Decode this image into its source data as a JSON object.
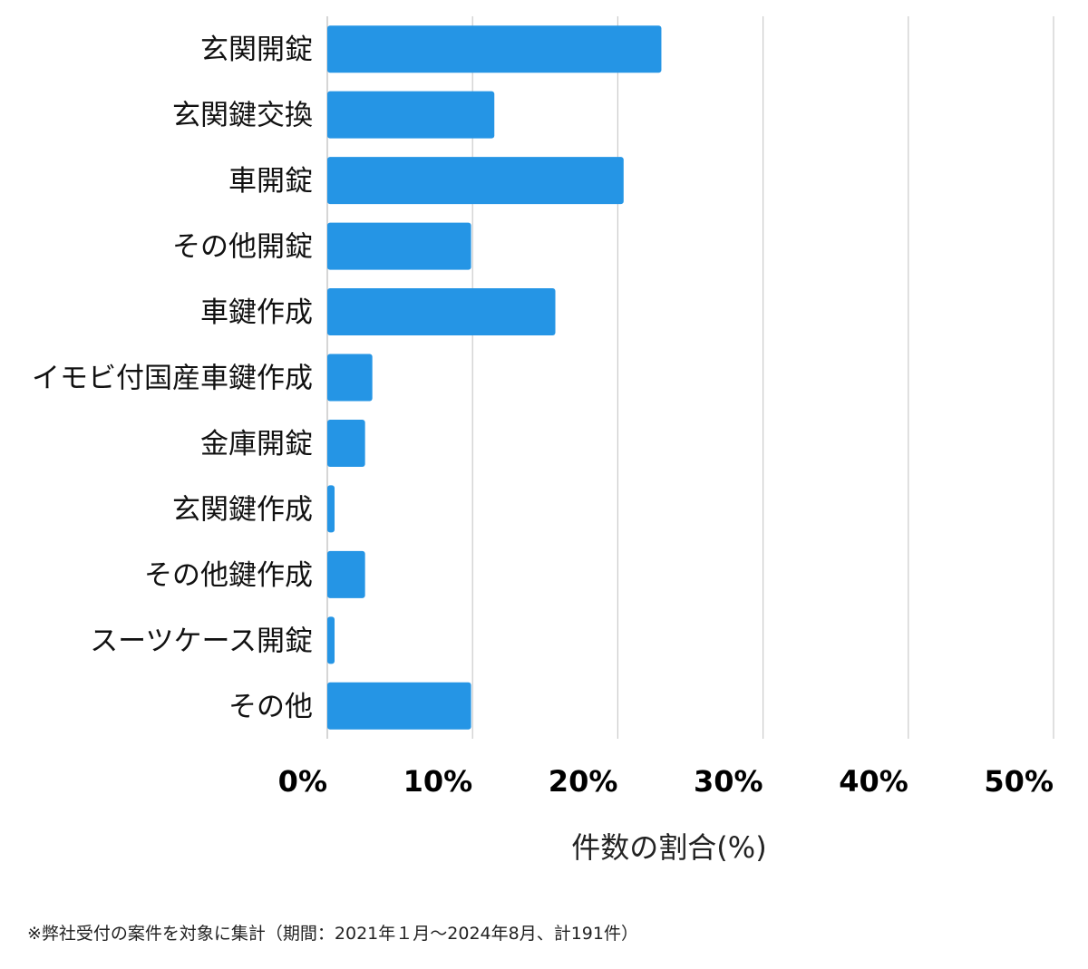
{
  "colors": {
    "bar": "#2595e5",
    "grid": "#cccccc",
    "axis": "#bbbbbb"
  },
  "chart_data": {
    "type": "bar",
    "orientation": "horizontal",
    "categories": [
      "玄関開錠",
      "玄関鍵交換",
      "車開錠",
      "その他開錠",
      "車鍵作成",
      "イモビ付国産車鍵作成",
      "金庫開錠",
      "玄関鍵作成",
      "その他鍵作成",
      "スーツケース開錠",
      "その他"
    ],
    "values": [
      23.0,
      11.5,
      20.4,
      9.9,
      15.7,
      3.1,
      2.6,
      0.5,
      2.6,
      0.5,
      9.9
    ],
    "xlim": [
      0,
      50
    ],
    "xticks": [
      0,
      10,
      20,
      30,
      40,
      50
    ],
    "xtick_labels": [
      "0%",
      "10%",
      "20%",
      "30%",
      "40%",
      "50%"
    ],
    "xlabel": "件数の割合(%)",
    "ylabel": "",
    "grid": "vertical",
    "legend": "none"
  },
  "footnote": "※弊社受付の案件を対象に集計（期間：2021年１月～2024年8月、計191件）"
}
